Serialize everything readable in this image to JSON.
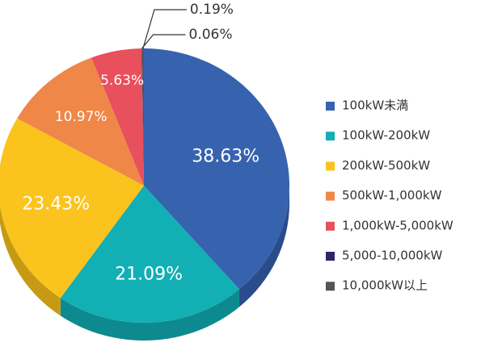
{
  "chart_data": {
    "type": "pie",
    "title": "",
    "categories": [
      "100kW未満",
      "100kW-200kW",
      "200kW-500kW",
      "500kW-1,000kW",
      "1,000kW-5,000kW",
      "5,000-10,000kW",
      "10,000kW以上"
    ],
    "values": [
      38.63,
      21.09,
      23.43,
      10.97,
      5.63,
      0.06,
      0.19
    ],
    "labels": [
      "38.63%",
      "21.09%",
      "23.43%",
      "10.97%",
      "5.63%",
      "0.06%",
      "0.19%"
    ],
    "colors": [
      "#3762ae",
      "#12afb5",
      "#fbc31e",
      "#ef8748",
      "#e8505d",
      "#2d2864",
      "#555555"
    ],
    "side_colors": [
      "#2a4c8b",
      "#0d8a8f",
      "#c79a14",
      "#bd6a36",
      "#b73e49",
      "#201d4a",
      "#3c3c3c"
    ],
    "legend_position": "right",
    "style": "3d"
  }
}
